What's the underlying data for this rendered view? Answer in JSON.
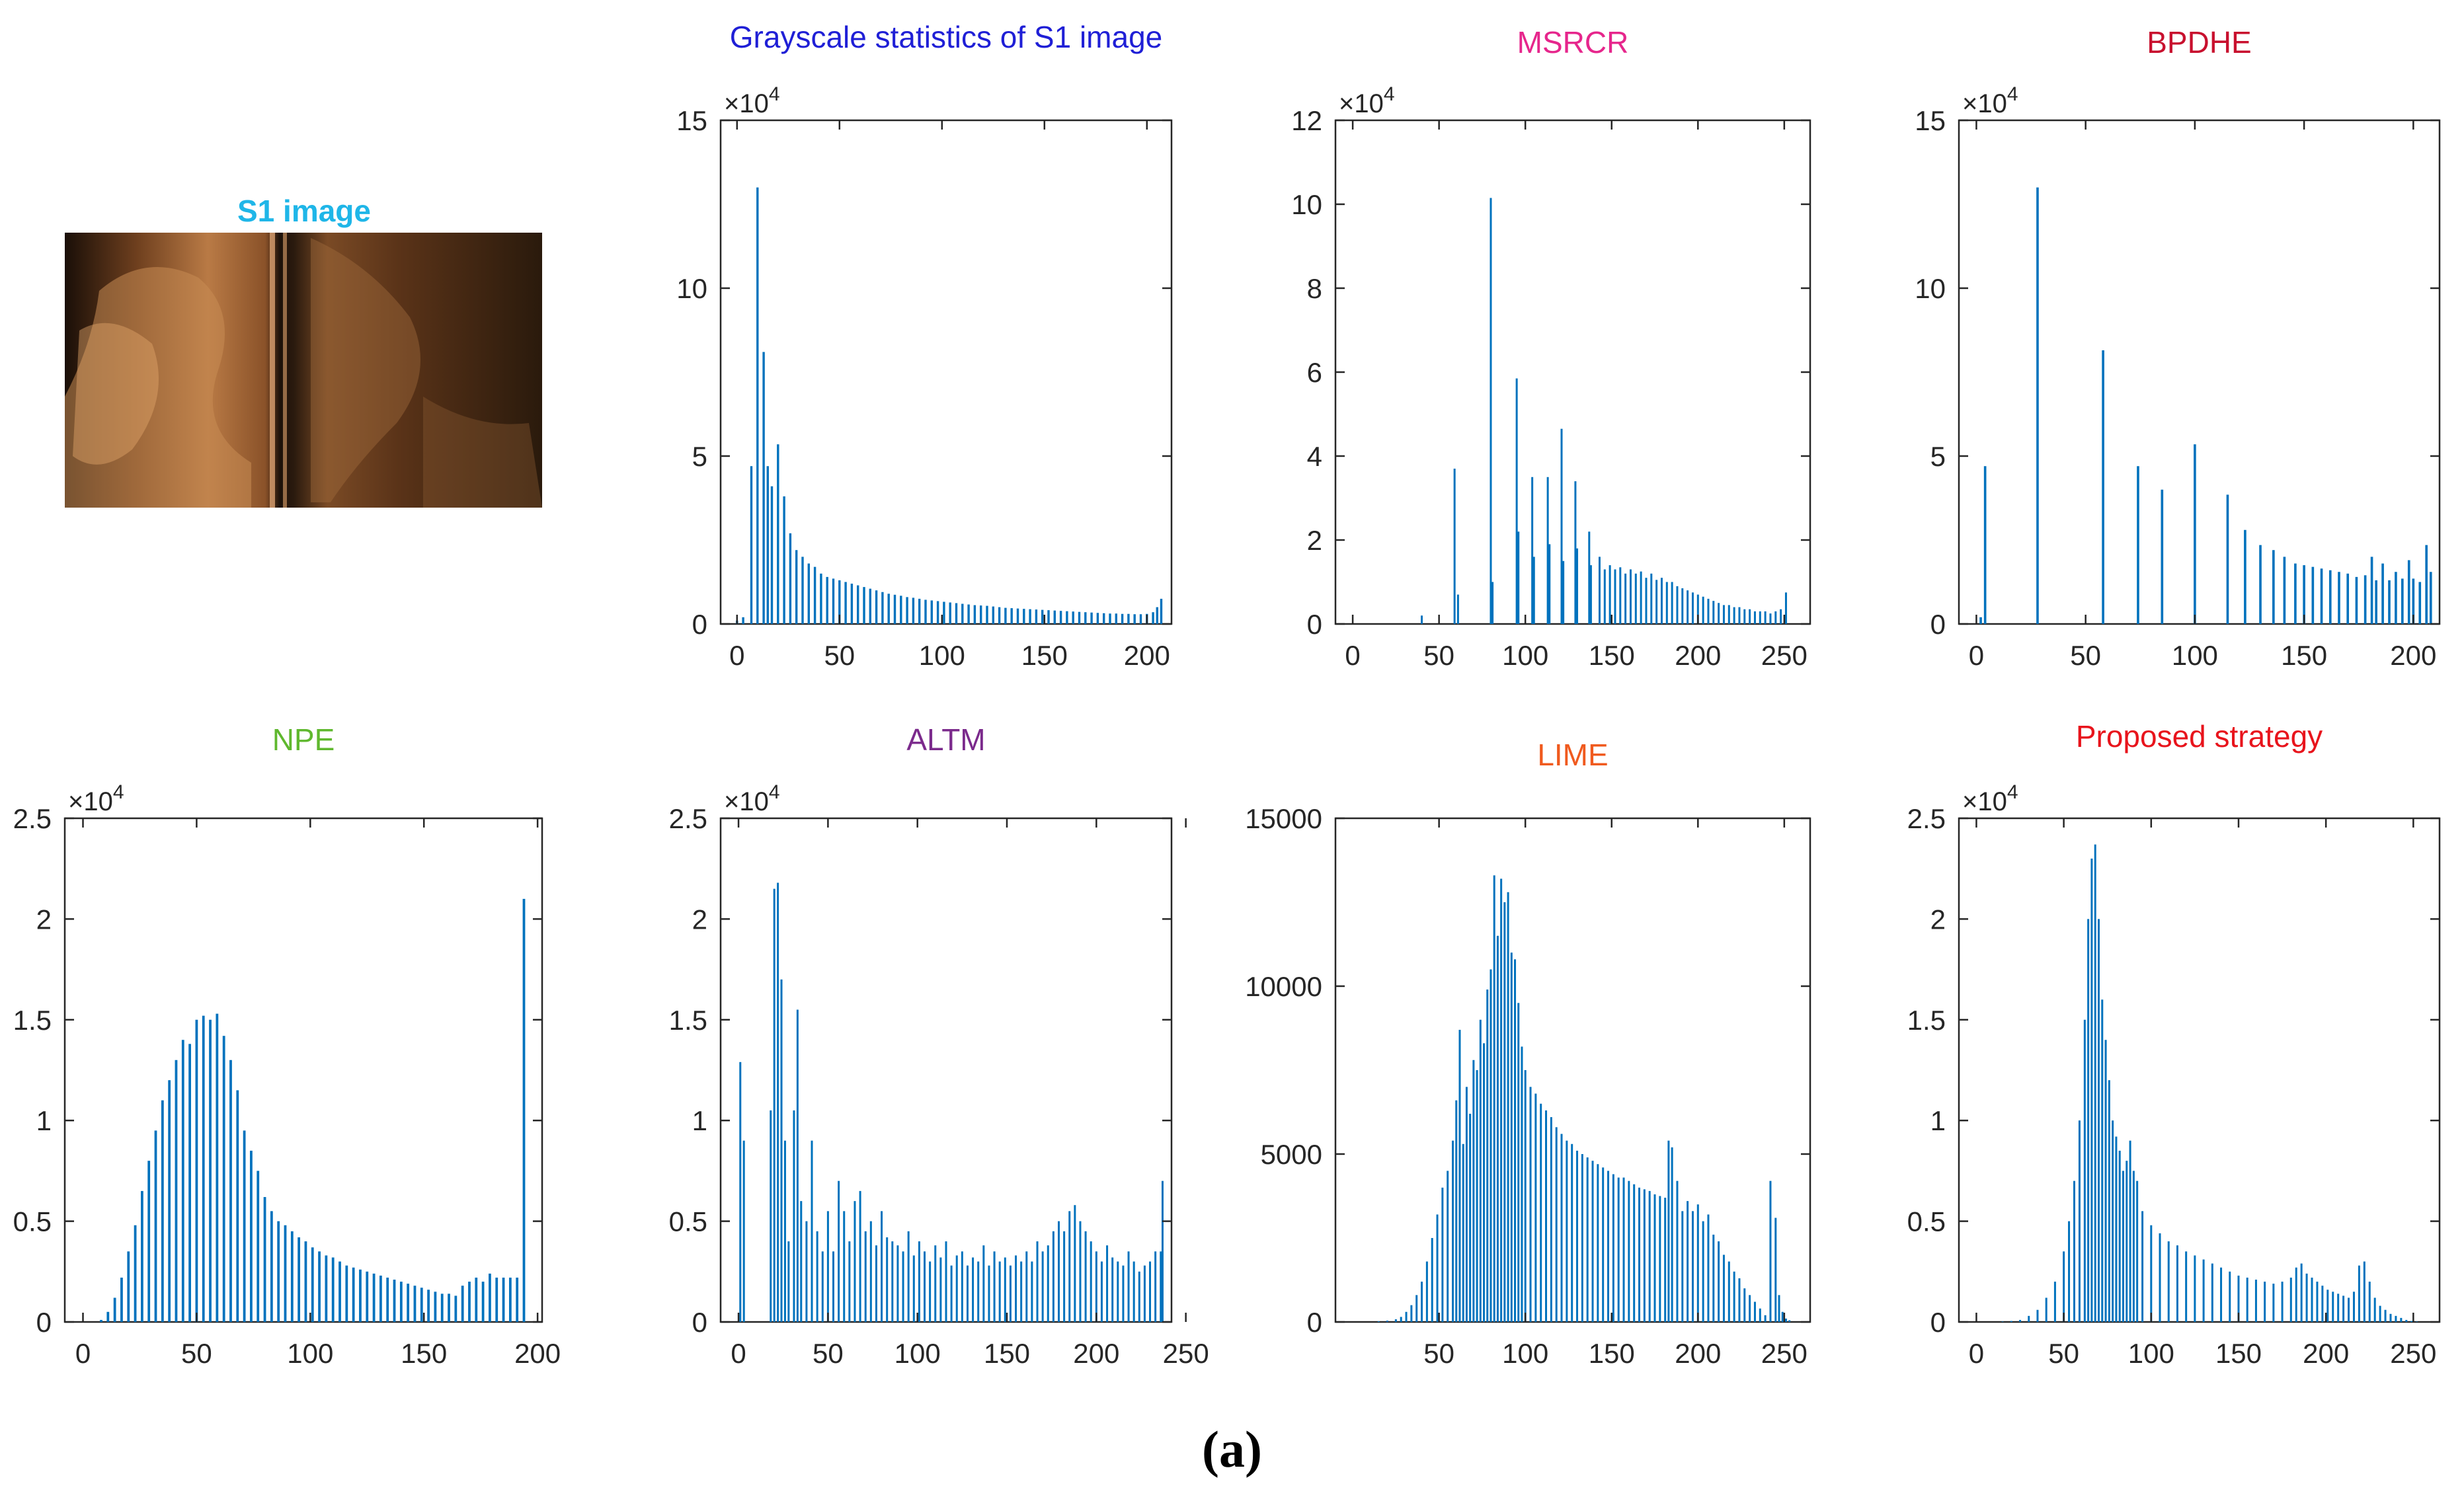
{
  "figure": {
    "caption": "(a)"
  },
  "image_panel": {
    "title": "S1 image",
    "title_color": "#1fb6e8"
  },
  "chart_data": [
    {
      "id": "orig",
      "type": "bar",
      "title": "Grayscale statistics of S1 image",
      "title_color": "#1f1fd6",
      "xlim": [
        -8,
        212
      ],
      "ylim": [
        0,
        15
      ],
      "xticks": [
        0,
        50,
        100,
        150,
        200
      ],
      "yticks": [
        0,
        5,
        10,
        15
      ],
      "exponent": "×10",
      "exponent_power": "4",
      "x": [
        0,
        3,
        7,
        10,
        13,
        15,
        17,
        20,
        23,
        26,
        29,
        32,
        35,
        38,
        41,
        44,
        47,
        50,
        53,
        56,
        59,
        62,
        65,
        68,
        71,
        74,
        77,
        80,
        83,
        86,
        89,
        92,
        95,
        98,
        101,
        104,
        107,
        110,
        113,
        116,
        119,
        122,
        125,
        128,
        131,
        134,
        137,
        140,
        143,
        146,
        149,
        152,
        155,
        158,
        161,
        164,
        167,
        170,
        173,
        176,
        179,
        182,
        185,
        188,
        191,
        194,
        197,
        200,
        203,
        205,
        207
      ],
      "values": [
        0.1,
        0.2,
        4.7,
        13,
        8.1,
        4.7,
        4.1,
        5.35,
        3.8,
        2.7,
        2.2,
        2.0,
        1.8,
        1.7,
        1.5,
        1.4,
        1.35,
        1.3,
        1.25,
        1.2,
        1.15,
        1.1,
        1.05,
        1.0,
        0.95,
        0.9,
        0.87,
        0.84,
        0.8,
        0.78,
        0.75,
        0.72,
        0.7,
        0.68,
        0.66,
        0.64,
        0.62,
        0.6,
        0.58,
        0.56,
        0.55,
        0.54,
        0.52,
        0.5,
        0.48,
        0.47,
        0.46,
        0.45,
        0.44,
        0.43,
        0.42,
        0.41,
        0.4,
        0.39,
        0.38,
        0.37,
        0.36,
        0.35,
        0.34,
        0.33,
        0.32,
        0.31,
        0.31,
        0.3,
        0.3,
        0.29,
        0.29,
        0.3,
        0.35,
        0.5,
        0.75
      ]
    },
    {
      "id": "msrcr",
      "type": "bar",
      "title": "MSRCR",
      "title_color": "#e6268c",
      "xlim": [
        -10,
        265
      ],
      "ylim": [
        0,
        12
      ],
      "xticks": [
        0,
        50,
        100,
        150,
        200,
        250
      ],
      "yticks": [
        0,
        2,
        4,
        6,
        8,
        10,
        12
      ],
      "exponent": "×10",
      "exponent_power": "4",
      "x": [
        40,
        59,
        61,
        80,
        81,
        95,
        96,
        104,
        105,
        113,
        114,
        121,
        122,
        129,
        130,
        137,
        138,
        143,
        146,
        149,
        152,
        155,
        158,
        161,
        164,
        167,
        170,
        173,
        176,
        179,
        182,
        185,
        188,
        191,
        194,
        197,
        200,
        203,
        206,
        209,
        212,
        215,
        218,
        221,
        224,
        227,
        230,
        233,
        236,
        239,
        242,
        245,
        248,
        251
      ],
      "values": [
        0.2,
        3.7,
        0.7,
        10.15,
        1.0,
        5.85,
        2.2,
        3.5,
        1.6,
        3.5,
        1.9,
        4.65,
        1.5,
        3.4,
        1.8,
        2.2,
        1.4,
        1.6,
        1.3,
        1.4,
        1.3,
        1.35,
        1.2,
        1.3,
        1.2,
        1.25,
        1.1,
        1.2,
        1.05,
        1.1,
        1.0,
        1.0,
        0.9,
        0.85,
        0.8,
        0.75,
        0.7,
        0.65,
        0.6,
        0.55,
        0.5,
        0.45,
        0.45,
        0.4,
        0.4,
        0.35,
        0.35,
        0.3,
        0.3,
        0.3,
        0.25,
        0.3,
        0.35,
        0.75
      ]
    },
    {
      "id": "bpdhe",
      "type": "bar",
      "title": "BPDHE",
      "title_color": "#c8102e",
      "xlim": [
        -8,
        212
      ],
      "ylim": [
        0,
        15
      ],
      "xticks": [
        0,
        50,
        100,
        150,
        200
      ],
      "yticks": [
        0,
        5,
        10,
        15
      ],
      "exponent": "×10",
      "exponent_power": "4",
      "x": [
        2,
        4,
        28,
        58,
        74,
        85,
        100,
        115,
        123,
        130,
        136,
        141,
        146,
        150,
        154,
        158,
        162,
        166,
        170,
        174,
        178,
        181,
        183,
        186,
        189,
        192,
        195,
        198,
        200,
        203,
        206,
        208
      ],
      "values": [
        0.2,
        4.7,
        13,
        8.15,
        4.7,
        4.0,
        5.35,
        3.85,
        2.8,
        2.35,
        2.2,
        2.0,
        1.8,
        1.75,
        1.7,
        1.65,
        1.6,
        1.55,
        1.5,
        1.4,
        1.45,
        2.0,
        1.3,
        1.8,
        1.3,
        1.55,
        1.35,
        1.9,
        1.35,
        1.25,
        2.35,
        1.55
      ]
    },
    {
      "id": "npe",
      "type": "bar",
      "title": "NPE",
      "title_color": "#5fb82e",
      "xlim": [
        -8,
        202
      ],
      "ylim": [
        0,
        2.5
      ],
      "xticks": [
        0,
        50,
        100,
        150,
        200
      ],
      "yticks": [
        0,
        0.5,
        1,
        1.5,
        2,
        2.5
      ],
      "exponent": "×10",
      "exponent_power": "4",
      "x": [
        8,
        11,
        14,
        17,
        20,
        23,
        26,
        29,
        32,
        35,
        38,
        41,
        44,
        47,
        50,
        53,
        56,
        59,
        62,
        65,
        68,
        71,
        74,
        77,
        80,
        83,
        86,
        89,
        92,
        95,
        98,
        101,
        104,
        107,
        110,
        113,
        116,
        119,
        122,
        125,
        128,
        131,
        134,
        137,
        140,
        143,
        146,
        149,
        152,
        155,
        158,
        161,
        164,
        167,
        170,
        173,
        176,
        179,
        182,
        185,
        188,
        191,
        194
      ],
      "values": [
        0.01,
        0.05,
        0.12,
        0.22,
        0.35,
        0.48,
        0.65,
        0.8,
        0.95,
        1.1,
        1.2,
        1.3,
        1.4,
        1.38,
        1.5,
        1.52,
        1.5,
        1.53,
        1.42,
        1.3,
        1.15,
        0.95,
        0.85,
        0.75,
        0.62,
        0.55,
        0.5,
        0.48,
        0.45,
        0.42,
        0.4,
        0.37,
        0.35,
        0.33,
        0.32,
        0.3,
        0.28,
        0.27,
        0.26,
        0.25,
        0.24,
        0.23,
        0.22,
        0.21,
        0.2,
        0.19,
        0.18,
        0.17,
        0.16,
        0.15,
        0.14,
        0.14,
        0.13,
        0.18,
        0.2,
        0.22,
        0.2,
        0.24,
        0.22,
        0.22,
        0.22,
        0.22,
        2.1
      ]
    },
    {
      "id": "altm",
      "type": "bar",
      "title": "ALTM",
      "title_color": "#7b2a8c",
      "xlim": [
        -10,
        242
      ],
      "ylim": [
        0,
        2.5
      ],
      "xticks": [
        0,
        50,
        100,
        150,
        200,
        250
      ],
      "yticks": [
        0,
        0.5,
        1,
        1.5,
        2,
        2.5
      ],
      "exponent": "×10",
      "exponent_power": "4",
      "x": [
        1,
        3,
        18,
        20,
        22,
        24,
        26,
        28,
        31,
        33,
        35,
        38,
        41,
        44,
        47,
        50,
        53,
        56,
        59,
        62,
        65,
        68,
        71,
        74,
        77,
        80,
        83,
        86,
        89,
        92,
        95,
        98,
        101,
        104,
        107,
        110,
        113,
        116,
        119,
        122,
        125,
        128,
        131,
        134,
        137,
        140,
        143,
        146,
        149,
        152,
        155,
        158,
        161,
        164,
        167,
        170,
        173,
        176,
        179,
        182,
        185,
        188,
        191,
        194,
        197,
        200,
        203,
        206,
        209,
        212,
        215,
        218,
        221,
        224,
        227,
        230,
        233,
        236,
        237
      ],
      "values": [
        1.29,
        0.9,
        1.05,
        2.15,
        2.18,
        1.7,
        0.9,
        0.4,
        1.05,
        1.55,
        0.6,
        0.5,
        0.9,
        0.45,
        0.35,
        0.55,
        0.35,
        0.7,
        0.55,
        0.4,
        0.6,
        0.65,
        0.45,
        0.5,
        0.38,
        0.55,
        0.42,
        0.4,
        0.38,
        0.35,
        0.45,
        0.33,
        0.4,
        0.35,
        0.3,
        0.38,
        0.32,
        0.4,
        0.28,
        0.33,
        0.35,
        0.28,
        0.32,
        0.3,
        0.38,
        0.28,
        0.35,
        0.3,
        0.32,
        0.28,
        0.33,
        0.3,
        0.35,
        0.3,
        0.4,
        0.35,
        0.38,
        0.45,
        0.5,
        0.45,
        0.55,
        0.58,
        0.5,
        0.45,
        0.4,
        0.35,
        0.3,
        0.38,
        0.32,
        0.3,
        0.28,
        0.35,
        0.3,
        0.25,
        0.28,
        0.3,
        0.35,
        0.35,
        0.7
      ]
    },
    {
      "id": "lime",
      "type": "bar",
      "title": "LIME",
      "title_color": "#f05a1e",
      "xlim": [
        -10,
        265
      ],
      "ylim": [
        0,
        15000
      ],
      "xticks": [
        50,
        100,
        150,
        200,
        250
      ],
      "yticks": [
        0,
        5000,
        10000,
        15000
      ],
      "exponent": "",
      "exponent_power": "",
      "x": [
        15,
        20,
        25,
        28,
        31,
        34,
        37,
        40,
        43,
        46,
        49,
        52,
        55,
        58,
        60,
        62,
        64,
        66,
        68,
        70,
        72,
        74,
        76,
        78,
        80,
        82,
        84,
        86,
        88,
        90,
        92,
        94,
        96,
        98,
        100,
        103,
        106,
        109,
        112,
        115,
        118,
        121,
        124,
        127,
        130,
        133,
        136,
        139,
        142,
        145,
        148,
        151,
        154,
        157,
        160,
        163,
        166,
        169,
        172,
        175,
        178,
        181,
        183,
        185,
        188,
        191,
        194,
        197,
        200,
        203,
        206,
        209,
        212,
        215,
        218,
        221,
        224,
        227,
        230,
        233,
        236,
        239,
        242,
        245,
        247,
        249,
        251,
        253
      ],
      "values": [
        20,
        40,
        80,
        150,
        300,
        500,
        800,
        1200,
        1800,
        2500,
        3200,
        4000,
        4500,
        5400,
        6600,
        8700,
        5300,
        7000,
        6200,
        7800,
        7500,
        9000,
        8300,
        9900,
        10500,
        13300,
        11500,
        13200,
        12500,
        12800,
        11000,
        10800,
        9500,
        8200,
        7500,
        7000,
        6800,
        6500,
        6300,
        6100,
        5800,
        5600,
        5400,
        5300,
        5100,
        5000,
        4900,
        4800,
        4700,
        4600,
        4500,
        4400,
        4300,
        4300,
        4200,
        4100,
        4000,
        3950,
        3900,
        3800,
        3750,
        3700,
        5400,
        5200,
        4200,
        3300,
        3600,
        3300,
        3500,
        3000,
        3200,
        2600,
        2400,
        2000,
        1800,
        1500,
        1300,
        1000,
        800,
        600,
        400,
        200,
        4200,
        3100,
        800,
        300,
        100,
        50
      ]
    },
    {
      "id": "proposed",
      "type": "bar",
      "title": "Proposed strategy",
      "title_color": "#e8141c",
      "xlim": [
        -10,
        265
      ],
      "ylim": [
        0,
        2.5
      ],
      "xticks": [
        0,
        50,
        100,
        150,
        200,
        250
      ],
      "yticks": [
        0,
        0.5,
        1,
        1.5,
        2,
        2.5
      ],
      "exponent": "×10",
      "exponent_power": "4",
      "x": [
        15,
        20,
        25,
        30,
        35,
        40,
        45,
        50,
        53,
        56,
        59,
        62,
        64,
        66,
        68,
        70,
        72,
        74,
        76,
        78,
        80,
        82,
        84,
        86,
        88,
        90,
        92,
        95,
        100,
        105,
        110,
        115,
        120,
        125,
        130,
        135,
        140,
        145,
        150,
        155,
        160,
        165,
        170,
        175,
        180,
        183,
        186,
        189,
        192,
        195,
        198,
        201,
        204,
        207,
        210,
        213,
        216,
        219,
        222,
        225,
        228,
        231,
        234,
        237,
        240,
        243,
        246,
        249,
        252
      ],
      "values": [
        0.002,
        0.005,
        0.01,
        0.03,
        0.06,
        0.12,
        0.2,
        0.35,
        0.5,
        0.7,
        1.0,
        1.5,
        2.0,
        2.3,
        2.37,
        2.0,
        1.6,
        1.4,
        1.2,
        1.0,
        0.92,
        0.85,
        0.75,
        0.8,
        0.9,
        0.75,
        0.7,
        0.55,
        0.48,
        0.44,
        0.4,
        0.38,
        0.35,
        0.33,
        0.31,
        0.29,
        0.27,
        0.25,
        0.23,
        0.22,
        0.21,
        0.2,
        0.19,
        0.2,
        0.22,
        0.27,
        0.29,
        0.24,
        0.22,
        0.2,
        0.18,
        0.16,
        0.15,
        0.14,
        0.13,
        0.12,
        0.15,
        0.28,
        0.3,
        0.2,
        0.12,
        0.08,
        0.06,
        0.04,
        0.03,
        0.02,
        0.01,
        0.005,
        0.002
      ]
    }
  ]
}
